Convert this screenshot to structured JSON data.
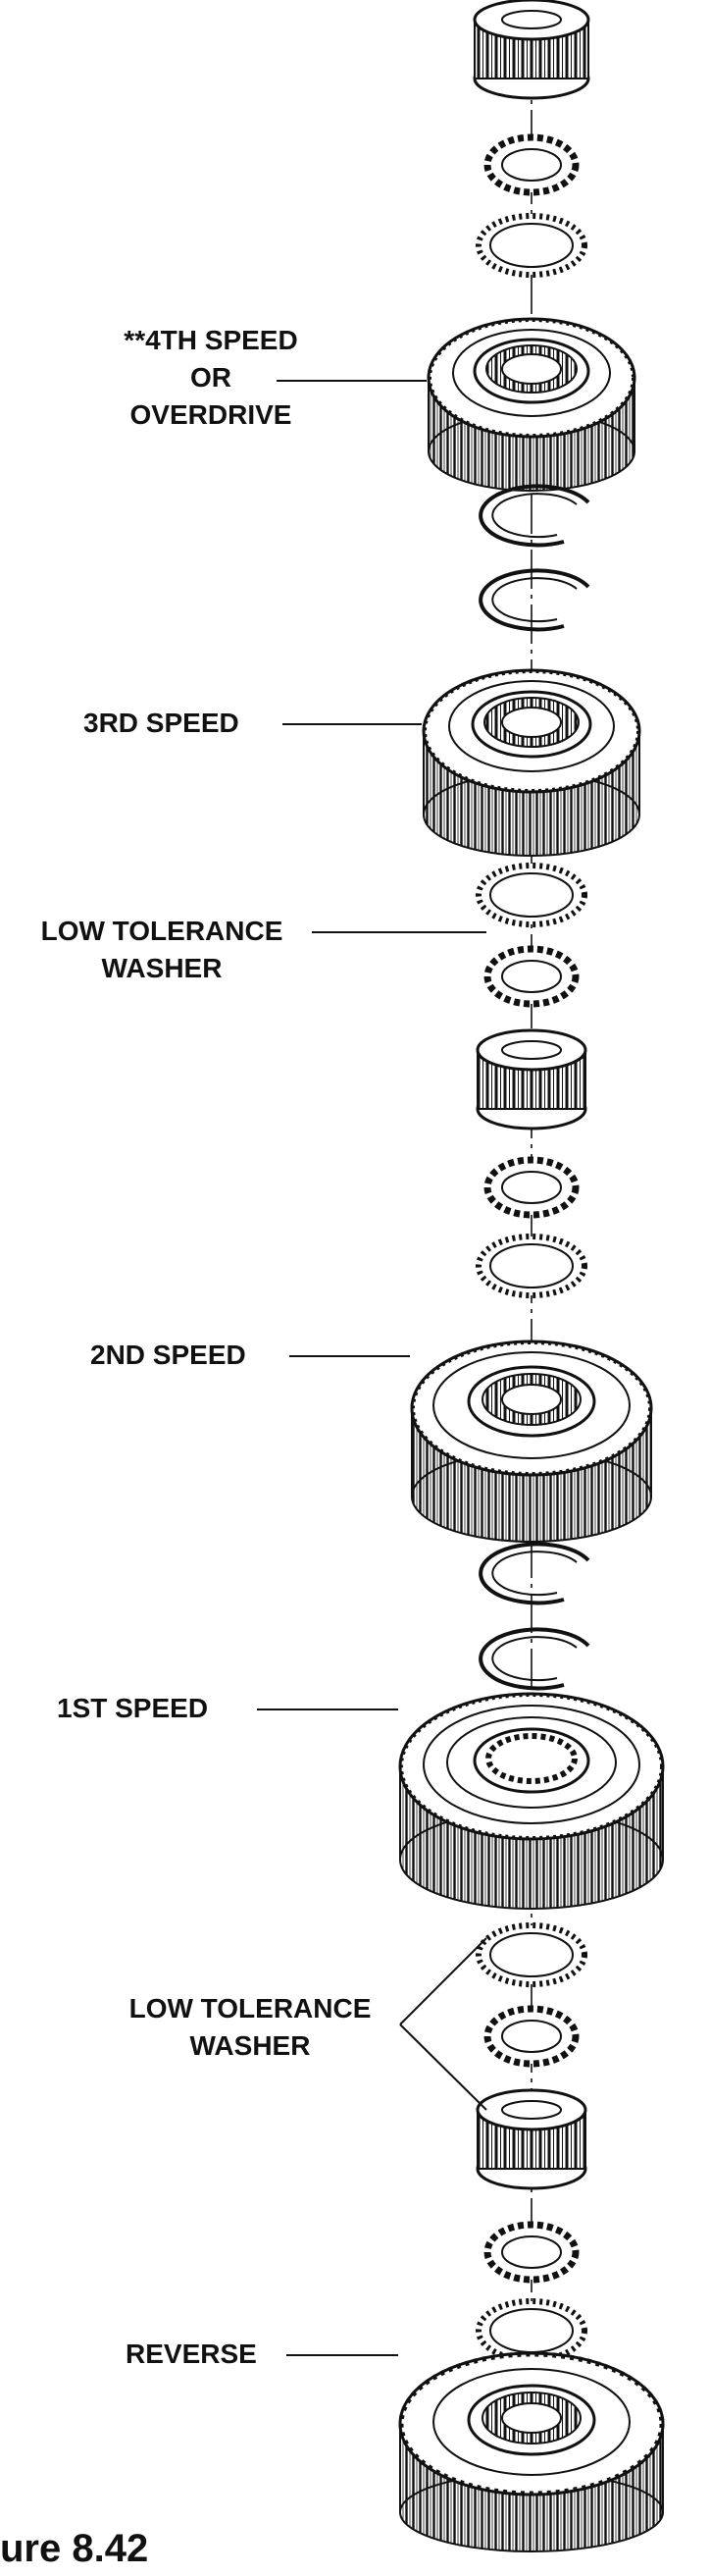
{
  "labels": {
    "fourth_speed": [
      "**4TH SPEED",
      "OR",
      "OVERDRIVE"
    ],
    "third_speed": "3RD SPEED",
    "low_tolerance_washer_1": [
      "LOW TOLERANCE",
      "WASHER"
    ],
    "second_speed": "2ND SPEED",
    "first_speed": "1ST SPEED",
    "low_tolerance_washer_2": [
      "LOW TOLERANCE",
      "WASHER"
    ],
    "reverse": "REVERSE"
  },
  "caption": "ure 8.42",
  "colors": {
    "ink": "#111111",
    "paper": "#ffffff"
  }
}
